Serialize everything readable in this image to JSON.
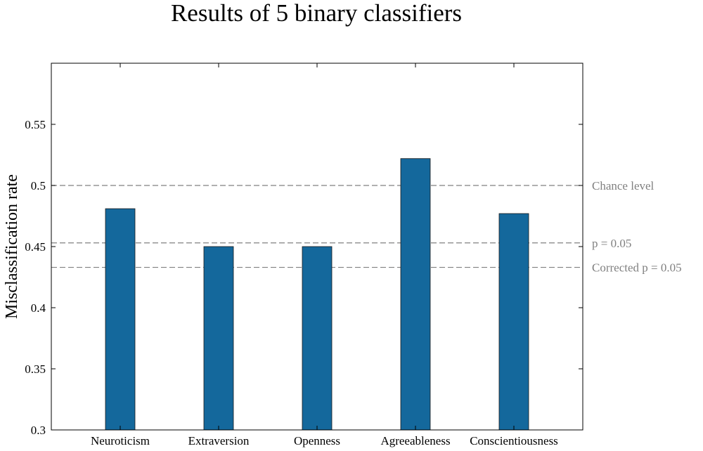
{
  "chart_data": {
    "type": "bar",
    "title": "Results of 5 binary classifiers",
    "xlabel": "",
    "ylabel": "Misclassification rate",
    "categories": [
      "Neuroticism",
      "Extraversion",
      "Openness",
      "Agreeableness",
      "Conscientiousness"
    ],
    "values": [
      0.481,
      0.45,
      0.45,
      0.522,
      0.477
    ],
    "ylim": [
      0.3,
      0.6
    ],
    "yticks": [
      0.3,
      0.35,
      0.4,
      0.45,
      0.5,
      0.55
    ],
    "ytick_labels": [
      "0.3",
      "0.35",
      "0.4",
      "0.45",
      "0.5",
      "0.55"
    ],
    "bar_color": "#14689c",
    "grid": false,
    "reference_lines": [
      {
        "label": "Chance level",
        "value": 0.5,
        "style": "dashed",
        "color": "#808080"
      },
      {
        "label": "p = 0.05",
        "value": 0.453,
        "style": "dashed",
        "color": "#808080"
      },
      {
        "label": "Corrected p = 0.05",
        "value": 0.433,
        "style": "dashed",
        "color": "#808080"
      }
    ]
  }
}
